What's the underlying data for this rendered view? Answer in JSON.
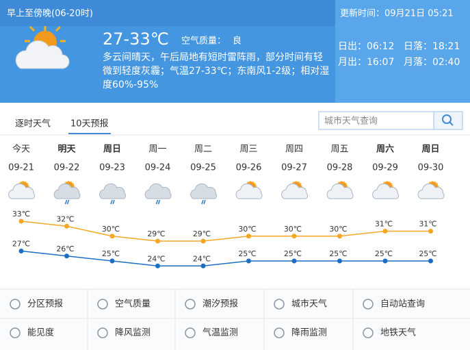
{
  "header": {
    "period": "早上至傍晚(06-20时)",
    "temperature": "27-33℃",
    "air_quality_label": "空气质量：",
    "air_quality": "良",
    "description": [
      "多云间晴天，午后局地有短时雷阵雨，部分时间有轻",
      "微到轻度灰霾；气温27-33℃；东南风1-2级；相对湿",
      "度60%-95%"
    ],
    "update_time": "更新时间：09月21日 05:21",
    "sunrise": "日出：06:12",
    "sunset": "日落：18:21",
    "moonrise": "月出：16:07",
    "moonset": "月落：02:40"
  },
  "tabs": [
    "逐时天气",
    "10天预报"
  ],
  "search_placeholder": "城市天气查询",
  "forecast": {
    "weekdays": [
      "今天",
      "明天",
      "周日",
      "周一",
      "周二",
      "周三",
      "周四",
      "周五",
      "周六",
      "周日"
    ],
    "dates": [
      "09-21",
      "09-22",
      "09-23",
      "09-24",
      "09-25",
      "09-26",
      "09-27",
      "09-28",
      "09-29",
      "09-30"
    ],
    "highs": [
      33,
      32,
      30,
      29,
      29,
      30,
      30,
      30,
      31,
      31
    ],
    "high_labels": [
      "33℃",
      "32℃",
      "30℃",
      "29℃",
      "29℃",
      "30℃",
      "30℃",
      "30℃",
      "31℃",
      "31℃"
    ],
    "lows": [
      27,
      26,
      25,
      24,
      24,
      25,
      25,
      25,
      25,
      25
    ],
    "low_labels": [
      "27℃",
      "26℃",
      "25℃",
      "24℃",
      "24℃",
      "25℃",
      "25℃",
      "25℃",
      "25℃",
      "25℃"
    ]
  },
  "links": [
    "分区预报",
    "空气质量",
    "潮汐预报",
    "城市天气",
    "自动站查询",
    "能见度",
    "降风监测",
    "气温监测",
    "降雨监测",
    "地铁天气"
  ]
}
